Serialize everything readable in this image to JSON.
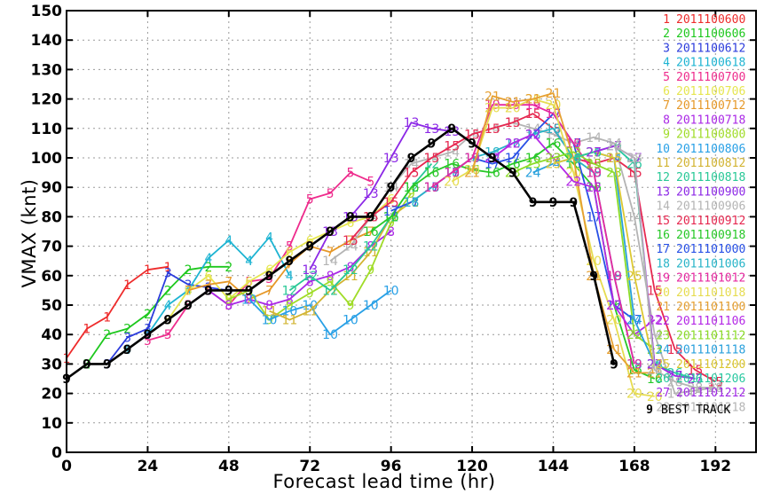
{
  "chart_data": {
    "type": "line",
    "title": "",
    "xlabel": "Forecast lead time (hr)",
    "ylabel": "VMAX (knt)",
    "xlim": [
      0,
      204
    ],
    "ylim": [
      0,
      150
    ],
    "xticks": [
      0,
      24,
      48,
      72,
      96,
      120,
      144,
      168,
      192
    ],
    "yticks": [
      0,
      10,
      20,
      30,
      40,
      50,
      60,
      70,
      80,
      90,
      100,
      110,
      120,
      130,
      140,
      150
    ],
    "grid": true,
    "legend_position": "right",
    "series": [
      {
        "name": "2011100600",
        "marker": "1",
        "color": "#ee2b2b",
        "x": [
          0,
          6,
          12,
          18,
          24,
          30
        ],
        "y": [
          32,
          42,
          46,
          57,
          62,
          63
        ]
      },
      {
        "name": "2011100606",
        "marker": "2",
        "color": "#1ec81e",
        "x": [
          6,
          12,
          18,
          24,
          30,
          36,
          42,
          48
        ],
        "y": [
          30,
          40,
          42,
          47,
          55,
          62,
          63,
          63
        ]
      },
      {
        "name": "2011100612",
        "marker": "3",
        "color": "#2b3bdc",
        "x": [
          12,
          18,
          24,
          30,
          36,
          42,
          48
        ],
        "y": [
          30,
          39,
          42,
          61,
          57,
          56,
          55
        ]
      },
      {
        "name": "2011100618",
        "marker": "4",
        "color": "#1eb4d2",
        "x": [
          18,
          24,
          30,
          36,
          42,
          48,
          54,
          60,
          66
        ],
        "y": [
          35,
          40,
          50,
          55,
          66,
          72,
          65,
          73,
          60
        ]
      },
      {
        "name": "2011100700",
        "marker": "5",
        "color": "#ee2b8c",
        "x": [
          24,
          30,
          36,
          42,
          48,
          54,
          60,
          66,
          72,
          78,
          84,
          90
        ],
        "y": [
          38,
          40,
          50,
          55,
          50,
          58,
          59,
          70,
          86,
          88,
          95,
          92
        ]
      },
      {
        "name": "2011100706",
        "marker": "6",
        "color": "#e6e650",
        "x": [
          30,
          36,
          42,
          48,
          54,
          60,
          66,
          72,
          78,
          84,
          90,
          96
        ],
        "y": [
          45,
          55,
          60,
          52,
          58,
          62,
          68,
          72,
          75,
          78,
          80,
          86
        ]
      },
      {
        "name": "2011100712",
        "marker": "7",
        "color": "#e69828",
        "x": [
          36,
          42,
          48,
          54,
          60,
          66,
          72,
          78,
          84,
          90
        ],
        "y": [
          55,
          57,
          58,
          52,
          55,
          64,
          70,
          68,
          72,
          75
        ]
      },
      {
        "name": "2011100718",
        "marker": "8",
        "color": "#aa28e6",
        "x": [
          42,
          48,
          54,
          60,
          66,
          72,
          78,
          84,
          90,
          96
        ],
        "y": [
          55,
          50,
          52,
          50,
          52,
          58,
          60,
          63,
          70,
          75
        ]
      },
      {
        "name": "2011100800",
        "marker": "9",
        "color": "#a0dc28",
        "x": [
          48,
          54,
          60,
          66,
          72,
          78,
          84,
          90,
          96,
          102
        ],
        "y": [
          52,
          55,
          45,
          50,
          54,
          58,
          50,
          62,
          78,
          88
        ]
      },
      {
        "name": "2011100806",
        "marker": "10",
        "color": "#28a0e6",
        "x": [
          54,
          60,
          66,
          72,
          78,
          84,
          90,
          96
        ],
        "y": [
          52,
          45,
          48,
          50,
          40,
          45,
          50,
          55
        ]
      },
      {
        "name": "2011100812",
        "marker": "11",
        "color": "#d2b432",
        "x": [
          60,
          66,
          72,
          78,
          84,
          90,
          96,
          102
        ],
        "y": [
          48,
          45,
          48,
          55,
          60,
          68,
          80,
          85
        ]
      },
      {
        "name": "2011100818",
        "marker": "12",
        "color": "#28c896",
        "x": [
          66,
          72,
          78,
          84,
          90,
          96,
          102,
          108
        ],
        "y": [
          55,
          60,
          55,
          62,
          70,
          80,
          90,
          98
        ]
      },
      {
        "name": "2011100900",
        "marker": "13",
        "color": "#8c28e6",
        "x": [
          72,
          78,
          84,
          90,
          96,
          102,
          108,
          114
        ],
        "y": [
          62,
          75,
          80,
          88,
          100,
          112,
          110,
          109
        ]
      },
      {
        "name": "2011100906",
        "marker": "14",
        "color": "#b4b4b4",
        "x": [
          78,
          84,
          90,
          96,
          102,
          108,
          114,
          120,
          126,
          132,
          138,
          144,
          150,
          156,
          162,
          168,
          174,
          180,
          186,
          192
        ],
        "y": [
          65,
          70,
          80,
          90,
          98,
          100,
          102,
          108,
          110,
          112,
          110,
          108,
          105,
          107,
          105,
          80,
          40,
          20,
          21,
          22
        ]
      },
      {
        "name": "2011100912",
        "marker": "15",
        "color": "#e62850",
        "x": [
          84,
          90,
          96,
          102,
          108,
          114,
          120,
          126,
          132,
          138,
          144,
          150,
          156,
          162,
          168,
          174,
          180,
          186,
          192
        ],
        "y": [
          72,
          80,
          85,
          95,
          100,
          104,
          108,
          110,
          112,
          115,
          110,
          100,
          98,
          100,
          95,
          55,
          35,
          28,
          24
        ]
      },
      {
        "name": "2011100918",
        "marker": "16",
        "color": "#28c828",
        "x": [
          90,
          96,
          102,
          108,
          114,
          120,
          126,
          132,
          138,
          144,
          150,
          156,
          162,
          168,
          174
        ],
        "y": [
          75,
          80,
          90,
          95,
          98,
          96,
          95,
          98,
          100,
          105,
          98,
          90,
          50,
          28,
          25
        ]
      },
      {
        "name": "2011101000",
        "marker": "17",
        "color": "#2850e6",
        "x": [
          96,
          102,
          108,
          114,
          120,
          126,
          132,
          138,
          144,
          150,
          156,
          162,
          168
        ],
        "y": [
          82,
          85,
          90,
          95,
          100,
          98,
          100,
          108,
          115,
          105,
          80,
          50,
          45
        ]
      },
      {
        "name": "2011101006",
        "marker": "18",
        "color": "#28b4c8",
        "x": [
          102,
          108,
          114,
          120,
          126,
          132,
          138,
          144,
          150,
          156,
          162,
          168
        ],
        "y": [
          85,
          90,
          95,
          100,
          102,
          105,
          108,
          110,
          100,
          95,
          60,
          30
        ]
      },
      {
        "name": "2011101012",
        "marker": "19",
        "color": "#e628a0",
        "x": [
          108,
          114,
          120,
          126,
          132,
          138,
          144,
          150,
          156,
          162,
          168
        ],
        "y": [
          90,
          95,
          100,
          118,
          118,
          118,
          115,
          105,
          95,
          60,
          30
        ]
      },
      {
        "name": "2011101018",
        "marker": "20",
        "color": "#e6dc50",
        "x": [
          114,
          120,
          126,
          132,
          138,
          144,
          150,
          156,
          162,
          168,
          174
        ],
        "y": [
          92,
          96,
          117,
          117,
          120,
          118,
          95,
          65,
          45,
          20,
          19
        ]
      },
      {
        "name": "2011101100",
        "marker": "21",
        "color": "#e6a032",
        "x": [
          120,
          126,
          132,
          138,
          144,
          150,
          156,
          162,
          168,
          174
        ],
        "y": [
          95,
          121,
          119,
          120,
          122,
          100,
          60,
          35,
          27,
          27
        ]
      },
      {
        "name": "2011101106",
        "marker": "22",
        "color": "#b428e6",
        "x": [
          126,
          132,
          138,
          144,
          150,
          156,
          162,
          168,
          174
        ],
        "y": [
          100,
          105,
          108,
          100,
          92,
          90,
          50,
          40,
          45
        ]
      },
      {
        "name": "2011101112",
        "marker": "23",
        "color": "#8cdc28",
        "x": [
          132,
          138,
          144,
          150,
          156,
          162,
          168,
          174
        ],
        "y": [
          95,
          98,
          100,
          102,
          98,
          95,
          40,
          35
        ]
      },
      {
        "name": "2011101118",
        "marker": "24",
        "color": "#28a0dc",
        "x": [
          138,
          144,
          150,
          156,
          162,
          168,
          174
        ],
        "y": [
          95,
          98,
          100,
          102,
          100,
          45,
          30
        ]
      },
      {
        "name": "2011101200",
        "marker": "25",
        "color": "#dcc832",
        "x": [
          144,
          150,
          156,
          162,
          168,
          174
        ],
        "y": [
          98,
          100,
          102,
          100,
          60,
          28
        ]
      },
      {
        "name": "2011101206",
        "marker": "26",
        "color": "#28c8a0",
        "x": [
          150,
          156,
          162,
          168,
          174,
          180,
          186
        ],
        "y": [
          100,
          102,
          104,
          98,
          30,
          27,
          25
        ]
      },
      {
        "name": "2011101212",
        "marker": "27",
        "color": "#a028e6",
        "x": [
          156,
          162,
          168,
          174,
          180,
          186
        ],
        "y": [
          102,
          104,
          100,
          30,
          26,
          25
        ]
      },
      {
        "name": "2011101218",
        "marker": "28",
        "color": "#b4b4b4",
        "x": [
          162,
          168,
          174,
          180,
          186,
          192
        ],
        "y": [
          104,
          100,
          28,
          24,
          22,
          22
        ]
      },
      {
        "name": "BEST TRACK",
        "marker": "9",
        "color": "#000000",
        "x": [
          0,
          6,
          12,
          18,
          24,
          30,
          36,
          42,
          48,
          54,
          60,
          66,
          72,
          78,
          84,
          90,
          96,
          102,
          108,
          114,
          120,
          126,
          132,
          138,
          144,
          150,
          156,
          162
        ],
        "y": [
          25,
          30,
          30,
          35,
          40,
          45,
          50,
          55,
          55,
          55,
          60,
          65,
          70,
          75,
          80,
          80,
          90,
          100,
          105,
          110,
          105,
          100,
          95,
          85,
          85,
          85,
          60,
          30
        ]
      }
    ]
  }
}
